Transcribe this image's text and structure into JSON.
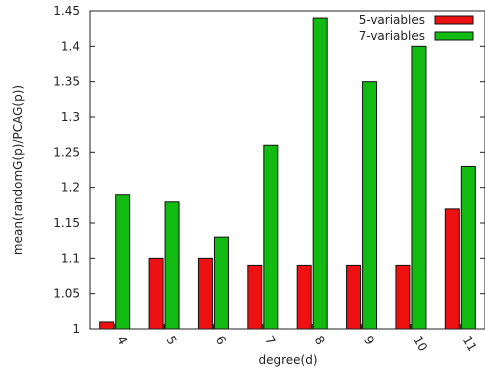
{
  "chart_data": {
    "type": "bar",
    "categories": [
      "4",
      "5",
      "6",
      "7",
      "8",
      "9",
      "10",
      "11"
    ],
    "series": [
      {
        "name": "5-variables",
        "color": "#ee1111",
        "values": [
          1.01,
          1.1,
          1.1,
          1.09,
          1.09,
          1.09,
          1.09,
          1.17
        ]
      },
      {
        "name": "7-variables",
        "color": "#11bb11",
        "values": [
          1.19,
          1.18,
          1.13,
          1.26,
          1.44,
          1.35,
          1.4,
          1.23
        ]
      }
    ],
    "xlabel": "degree(d)",
    "ylabel": "mean(randomG(p)/PCAG(p))",
    "ylim": [
      1,
      1.45
    ],
    "yticks": [
      "1",
      "1.05",
      "1.1",
      "1.15",
      "1.2",
      "1.25",
      "1.3",
      "1.35",
      "1.4",
      "1.45"
    ],
    "legend_position": "top-right",
    "grid": false
  }
}
